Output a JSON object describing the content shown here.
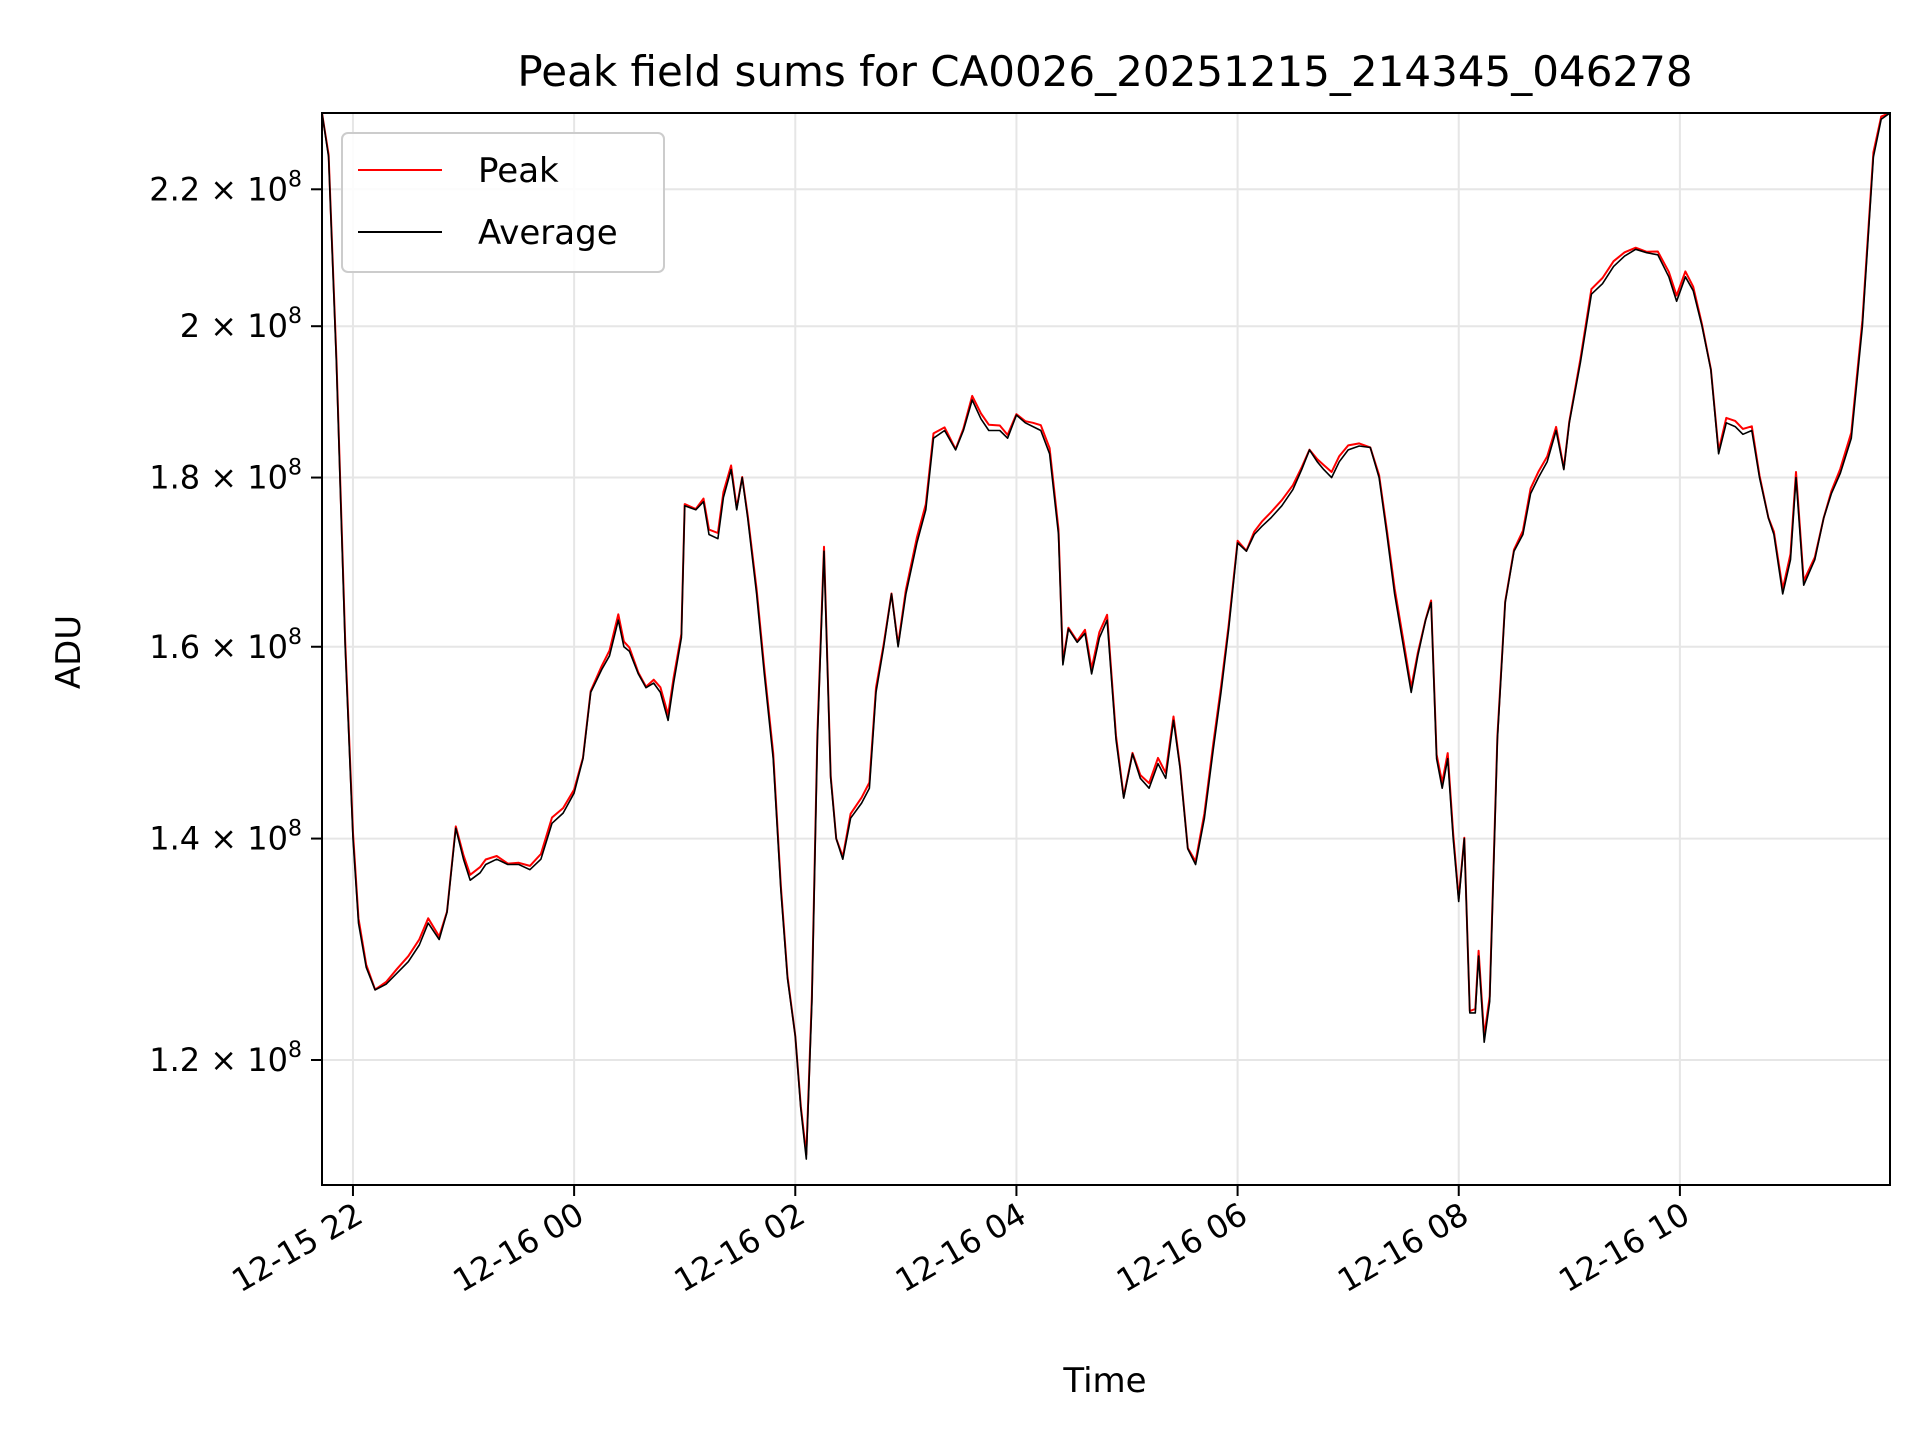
{
  "chart_data": {
    "type": "line",
    "title": "Peak field sums for CA0026_20251215_214345_046278",
    "xlabel": "Time",
    "ylabel": "ADU",
    "x_tick_labels": [
      "12-15 22",
      "12-16 00",
      "12-16 02",
      "12-16 04",
      "12-16 06",
      "12-16 08",
      "12-16 10"
    ],
    "x_tick_hours": [
      22,
      24,
      26,
      28,
      30,
      32,
      34
    ],
    "x_range_hours": [
      21.72,
      35.9
    ],
    "y_scale": "log",
    "ylim": [
      110000000,
      232000000
    ],
    "y_ticks": [
      {
        "value": 120000000,
        "mantissa": "1.2",
        "exponent": "8"
      },
      {
        "value": 140000000,
        "mantissa": "1.4",
        "exponent": "8"
      },
      {
        "value": 160000000,
        "mantissa": "1.6",
        "exponent": "8"
      },
      {
        "value": 180000000,
        "mantissa": "1.8",
        "exponent": "8"
      },
      {
        "value": 200000000,
        "mantissa": "2",
        "exponent": "8"
      },
      {
        "value": 220000000,
        "mantissa": "2.2",
        "exponent": "8"
      }
    ],
    "times_symbol": "×",
    "exp_base": "10",
    "grid": true,
    "legend_position": "upper left",
    "series": [
      {
        "name": "Peak",
        "color": "#ff0000"
      },
      {
        "name": "Average",
        "color": "#000000"
      }
    ],
    "average_points": [
      [
        21.72,
        232000000
      ],
      [
        21.78,
        225000000
      ],
      [
        21.85,
        195000000
      ],
      [
        21.93,
        160000000
      ],
      [
        22.0,
        140000000
      ],
      [
        22.05,
        132000000
      ],
      [
        22.12,
        128000000
      ],
      [
        22.2,
        126000000
      ],
      [
        22.3,
        126500000
      ],
      [
        22.4,
        127500000
      ],
      [
        22.5,
        128500000
      ],
      [
        22.6,
        130000000
      ],
      [
        22.68,
        132000000
      ],
      [
        22.78,
        130500000
      ],
      [
        22.85,
        133000000
      ],
      [
        22.93,
        141000000
      ],
      [
        23.0,
        138000000
      ],
      [
        23.06,
        136000000
      ],
      [
        23.15,
        136700000
      ],
      [
        23.2,
        137500000
      ],
      [
        23.3,
        138000000
      ],
      [
        23.4,
        137500000
      ],
      [
        23.5,
        137500000
      ],
      [
        23.6,
        137000000
      ],
      [
        23.7,
        138000000
      ],
      [
        23.8,
        141500000
      ],
      [
        23.9,
        142500000
      ],
      [
        24.0,
        144500000
      ],
      [
        24.08,
        148000000
      ],
      [
        24.15,
        155000000
      ],
      [
        24.25,
        157500000
      ],
      [
        24.32,
        159000000
      ],
      [
        24.4,
        163000000
      ],
      [
        24.45,
        160000000
      ],
      [
        24.5,
        159500000
      ],
      [
        24.58,
        157000000
      ],
      [
        24.65,
        155500000
      ],
      [
        24.72,
        156000000
      ],
      [
        24.78,
        155000000
      ],
      [
        24.85,
        152000000
      ],
      [
        24.9,
        156000000
      ],
      [
        24.97,
        161000000
      ],
      [
        25.0,
        176500000
      ],
      [
        25.1,
        176000000
      ],
      [
        25.17,
        177000000
      ],
      [
        25.22,
        173000000
      ],
      [
        25.3,
        172500000
      ],
      [
        25.35,
        177500000
      ],
      [
        25.42,
        181000000
      ],
      [
        25.47,
        176000000
      ],
      [
        25.52,
        180000000
      ],
      [
        25.57,
        175000000
      ],
      [
        25.65,
        166000000
      ],
      [
        25.72,
        157000000
      ],
      [
        25.8,
        148000000
      ],
      [
        25.87,
        135000000
      ],
      [
        25.93,
        127000000
      ],
      [
        26.0,
        122000000
      ],
      [
        26.05,
        116000000
      ],
      [
        26.1,
        112000000
      ],
      [
        26.15,
        125000000
      ],
      [
        26.2,
        150000000
      ],
      [
        26.26,
        171000000
      ],
      [
        26.32,
        146000000
      ],
      [
        26.37,
        140000000
      ],
      [
        26.43,
        138000000
      ],
      [
        26.5,
        142000000
      ],
      [
        26.6,
        143500000
      ],
      [
        26.67,
        145000000
      ],
      [
        26.73,
        155000000
      ],
      [
        26.8,
        160000000
      ],
      [
        26.87,
        166000000
      ],
      [
        26.93,
        160000000
      ],
      [
        27.0,
        166000000
      ],
      [
        27.1,
        172000000
      ],
      [
        27.18,
        176000000
      ],
      [
        27.25,
        185000000
      ],
      [
        27.35,
        186000000
      ],
      [
        27.45,
        183500000
      ],
      [
        27.52,
        186000000
      ],
      [
        27.6,
        190000000
      ],
      [
        27.68,
        187500000
      ],
      [
        27.75,
        186000000
      ],
      [
        27.85,
        186000000
      ],
      [
        27.92,
        185000000
      ],
      [
        28.0,
        188000000
      ],
      [
        28.08,
        187000000
      ],
      [
        28.15,
        186500000
      ],
      [
        28.22,
        186000000
      ],
      [
        28.3,
        183000000
      ],
      [
        28.38,
        173000000
      ],
      [
        28.42,
        158000000
      ],
      [
        28.47,
        162000000
      ],
      [
        28.55,
        160500000
      ],
      [
        28.62,
        161500000
      ],
      [
        28.68,
        157000000
      ],
      [
        28.75,
        161000000
      ],
      [
        28.82,
        163000000
      ],
      [
        28.9,
        150000000
      ],
      [
        28.97,
        144000000
      ],
      [
        29.05,
        148500000
      ],
      [
        29.12,
        146000000
      ],
      [
        29.2,
        145000000
      ],
      [
        29.28,
        147500000
      ],
      [
        29.35,
        146000000
      ],
      [
        29.42,
        152000000
      ],
      [
        29.48,
        147000000
      ],
      [
        29.55,
        139000000
      ],
      [
        29.62,
        137500000
      ],
      [
        29.7,
        142000000
      ],
      [
        29.78,
        149000000
      ],
      [
        29.85,
        155000000
      ],
      [
        29.92,
        162000000
      ],
      [
        30.0,
        172000000
      ],
      [
        30.08,
        171000000
      ],
      [
        30.15,
        173000000
      ],
      [
        30.22,
        174000000
      ],
      [
        30.3,
        175000000
      ],
      [
        30.4,
        176500000
      ],
      [
        30.5,
        178500000
      ],
      [
        30.58,
        181000000
      ],
      [
        30.65,
        183500000
      ],
      [
        30.72,
        182000000
      ],
      [
        30.78,
        181000000
      ],
      [
        30.85,
        180000000
      ],
      [
        30.92,
        182000000
      ],
      [
        31.0,
        183500000
      ],
      [
        31.1,
        184000000
      ],
      [
        31.2,
        183800000
      ],
      [
        31.28,
        180000000
      ],
      [
        31.35,
        173000000
      ],
      [
        31.42,
        166000000
      ],
      [
        31.5,
        160000000
      ],
      [
        31.57,
        155000000
      ],
      [
        31.63,
        159000000
      ],
      [
        31.7,
        163000000
      ],
      [
        31.75,
        165000000
      ],
      [
        31.8,
        148000000
      ],
      [
        31.85,
        145000000
      ],
      [
        31.9,
        148000000
      ],
      [
        31.95,
        140000000
      ],
      [
        32.0,
        134000000
      ],
      [
        32.05,
        140000000
      ],
      [
        32.1,
        124000000
      ],
      [
        32.15,
        124000000
      ],
      [
        32.18,
        129000000
      ],
      [
        32.23,
        121500000
      ],
      [
        32.28,
        125000000
      ],
      [
        32.35,
        150000000
      ],
      [
        32.42,
        165000000
      ],
      [
        32.5,
        171000000
      ],
      [
        32.58,
        173000000
      ],
      [
        32.65,
        178000000
      ],
      [
        32.72,
        180000000
      ],
      [
        32.8,
        182000000
      ],
      [
        32.88,
        186000000
      ],
      [
        32.95,
        181000000
      ],
      [
        33.0,
        187000000
      ],
      [
        33.1,
        195000000
      ],
      [
        33.2,
        204500000
      ],
      [
        33.3,
        206000000
      ],
      [
        33.4,
        208500000
      ],
      [
        33.5,
        210000000
      ],
      [
        33.6,
        211000000
      ],
      [
        33.7,
        210500000
      ],
      [
        33.8,
        210200000
      ],
      [
        33.9,
        207000000
      ],
      [
        33.97,
        203500000
      ],
      [
        34.05,
        207000000
      ],
      [
        34.12,
        205000000
      ],
      [
        34.2,
        200000000
      ],
      [
        34.28,
        194000000
      ],
      [
        34.35,
        183000000
      ],
      [
        34.42,
        187000000
      ],
      [
        34.5,
        186500000
      ],
      [
        34.57,
        185500000
      ],
      [
        34.65,
        186000000
      ],
      [
        34.72,
        180000000
      ],
      [
        34.8,
        175000000
      ],
      [
        34.85,
        173000000
      ],
      [
        34.93,
        166000000
      ],
      [
        35.0,
        170000000
      ],
      [
        35.05,
        180000000
      ],
      [
        35.12,
        167000000
      ],
      [
        35.22,
        170000000
      ],
      [
        35.3,
        175000000
      ],
      [
        35.37,
        178000000
      ],
      [
        35.45,
        180500000
      ],
      [
        35.55,
        185000000
      ],
      [
        35.65,
        200000000
      ],
      [
        35.75,
        225000000
      ],
      [
        35.82,
        231000000
      ],
      [
        35.9,
        232000000
      ]
    ]
  }
}
